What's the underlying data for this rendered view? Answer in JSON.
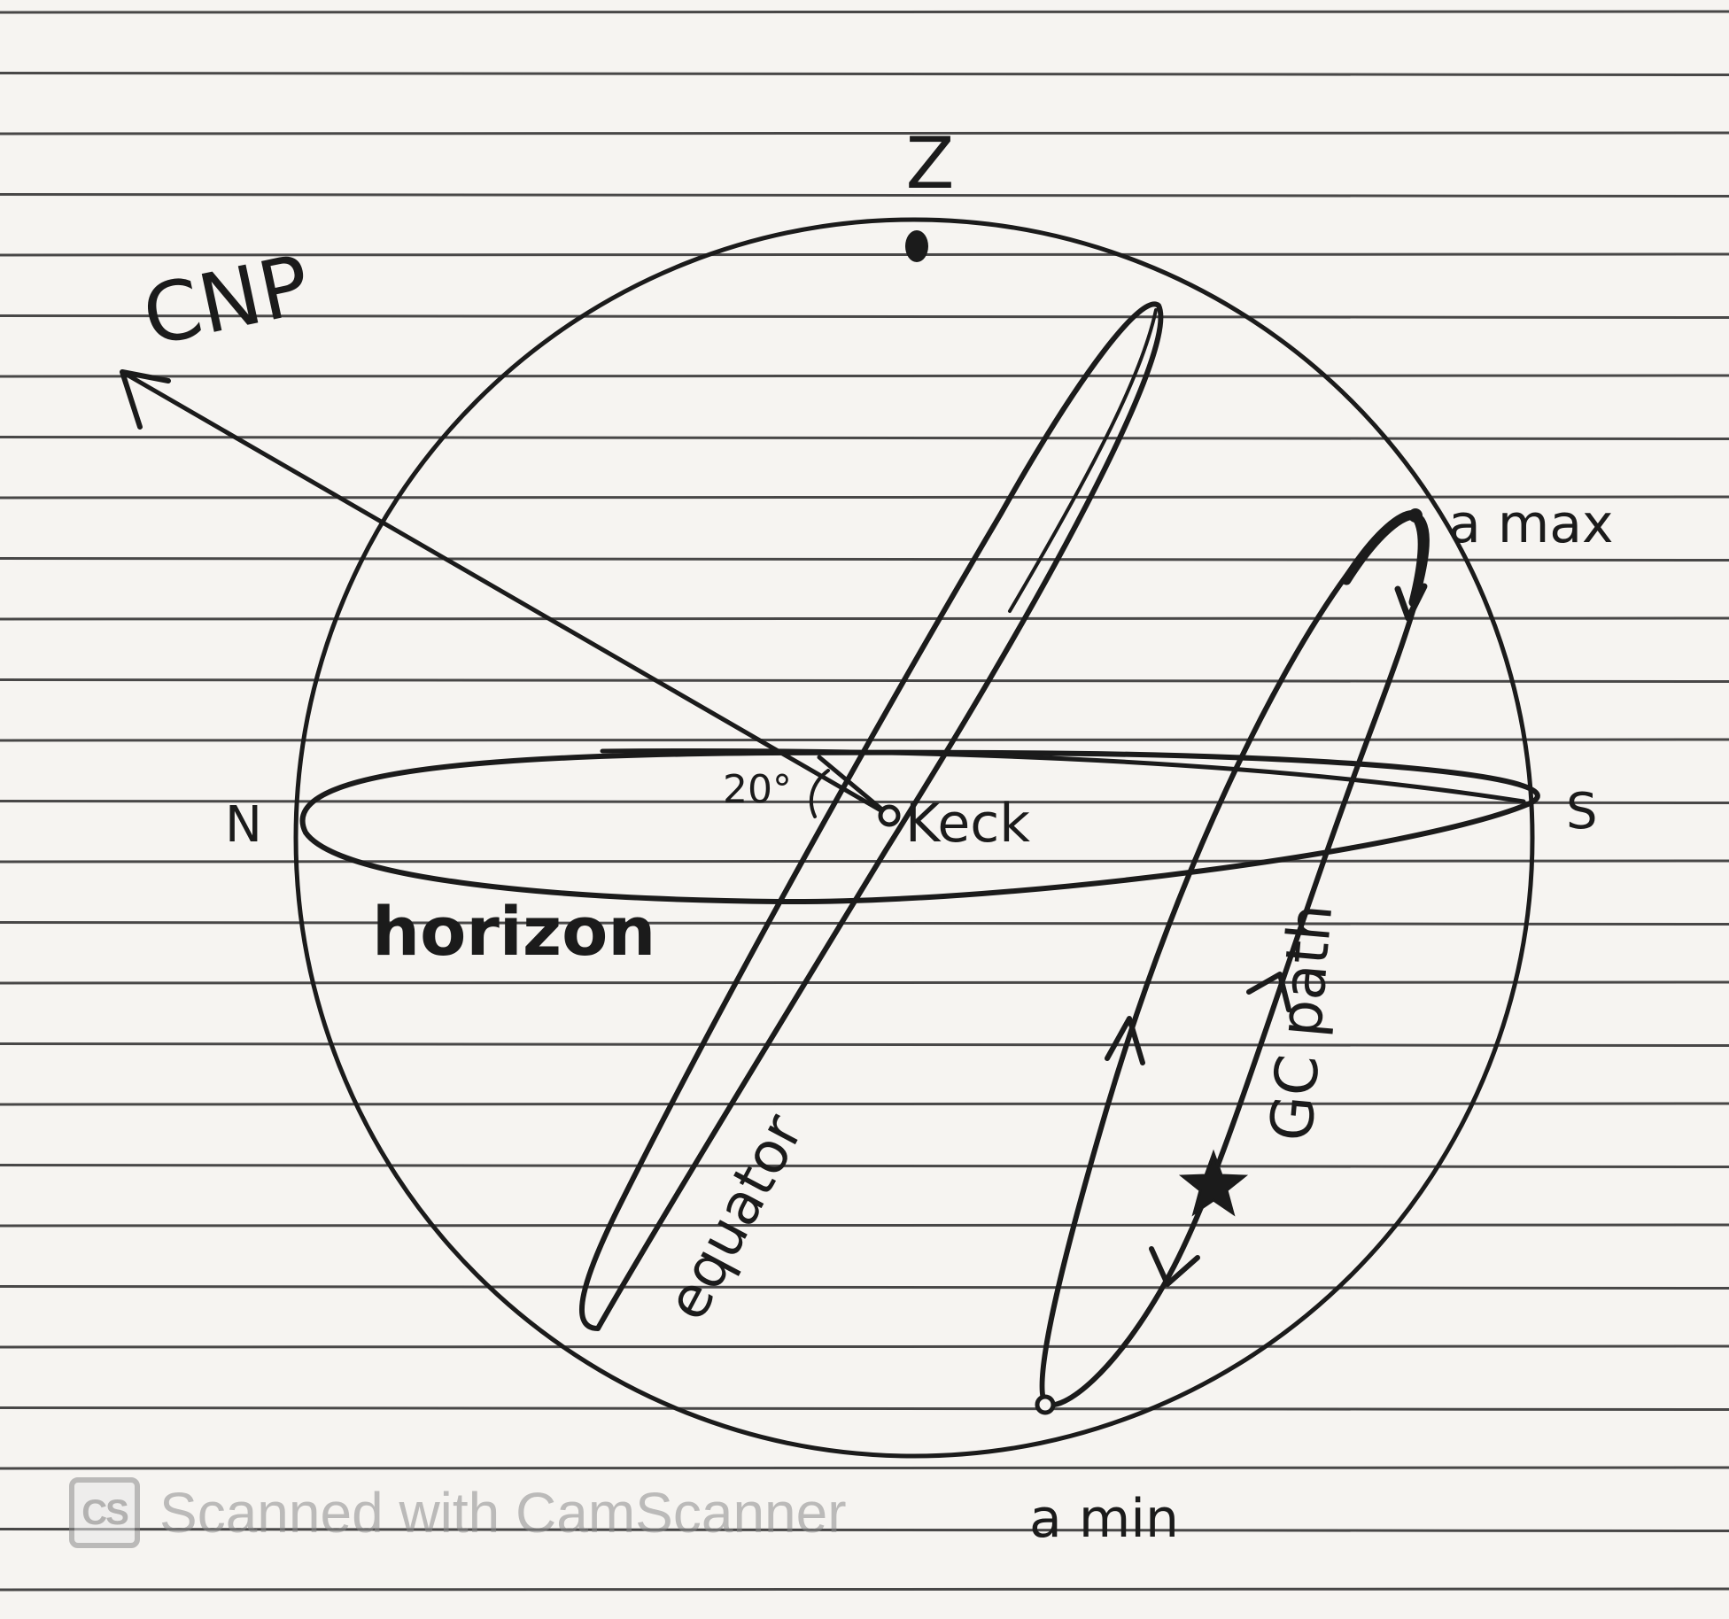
{
  "labels": {
    "zenith": "Z",
    "pole": "CNP",
    "north": "N",
    "south": "S",
    "site": "Keck",
    "angle": "20°",
    "horizon": "horizon",
    "equator": "equator",
    "gc_path": "GC path",
    "alt_max": "a max",
    "alt_min": "a min"
  },
  "watermark": {
    "logo": "CS",
    "text": "Scanned with CamScanner"
  },
  "colors": {
    "paper": "#f6f4f1",
    "ruling": "#2a2a2a",
    "ink": "#1b1b1b",
    "watermark": "#8c8c8c"
  }
}
